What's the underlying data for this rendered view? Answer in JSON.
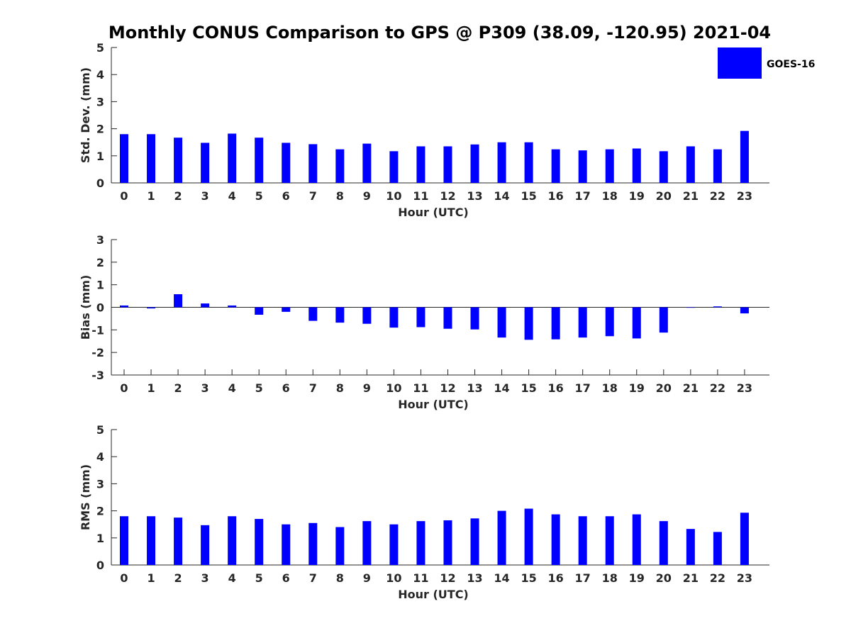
{
  "chart_data": {
    "title": "Monthly CONUS Comparison to GPS @ P309 (38.09, -120.95) 2021-04",
    "type": "bar",
    "color": "#0000ff",
    "legend": {
      "label": "GOES-16",
      "placement": "top-right"
    },
    "panels": [
      {
        "name": "std-dev",
        "type": "bar",
        "xlabel": "Hour (UTC)",
        "ylabel": "Std. Dev. (mm)",
        "ylim": [
          0,
          5
        ],
        "yticks": [
          0,
          1,
          2,
          3,
          4,
          5
        ],
        "categories": [
          "0",
          "1",
          "2",
          "3",
          "4",
          "5",
          "6",
          "7",
          "8",
          "9",
          "10",
          "11",
          "12",
          "13",
          "14",
          "15",
          "16",
          "17",
          "18",
          "19",
          "20",
          "21",
          "22",
          "23"
        ],
        "series": [
          {
            "name": "GOES-16",
            "values": [
              1.8,
              1.8,
              1.67,
              1.48,
              1.82,
              1.67,
              1.48,
              1.43,
              1.24,
              1.45,
              1.17,
              1.35,
              1.35,
              1.42,
              1.5,
              1.5,
              1.24,
              1.2,
              1.24,
              1.27,
              1.17,
              1.35,
              1.24,
              1.92
            ]
          }
        ]
      },
      {
        "name": "bias",
        "type": "bar",
        "xlabel": "Hour (UTC)",
        "ylabel": "Bias (mm)",
        "ylim": [
          -3,
          3
        ],
        "yticks": [
          -3,
          -2,
          -1,
          0,
          1,
          2,
          3
        ],
        "categories": [
          "0",
          "1",
          "2",
          "3",
          "4",
          "5",
          "6",
          "7",
          "8",
          "9",
          "10",
          "11",
          "12",
          "13",
          "14",
          "15",
          "16",
          "17",
          "18",
          "19",
          "20",
          "21",
          "22",
          "23"
        ],
        "series": [
          {
            "name": "GOES-16",
            "values": [
              0.08,
              -0.05,
              0.58,
              0.17,
              0.08,
              -0.33,
              -0.2,
              -0.6,
              -0.68,
              -0.73,
              -0.9,
              -0.88,
              -0.95,
              -0.98,
              -1.34,
              -1.44,
              -1.42,
              -1.34,
              -1.28,
              -1.38,
              -1.12,
              -0.02,
              0.04,
              -0.27
            ]
          }
        ]
      },
      {
        "name": "rms",
        "type": "bar",
        "xlabel": "Hour (UTC)",
        "ylabel": "RMS (mm)",
        "ylim": [
          0,
          5
        ],
        "yticks": [
          0,
          1,
          2,
          3,
          4,
          5
        ],
        "categories": [
          "0",
          "1",
          "2",
          "3",
          "4",
          "5",
          "6",
          "7",
          "8",
          "9",
          "10",
          "11",
          "12",
          "13",
          "14",
          "15",
          "16",
          "17",
          "18",
          "19",
          "20",
          "21",
          "22",
          "23"
        ],
        "series": [
          {
            "name": "GOES-16",
            "values": [
              1.8,
              1.8,
              1.75,
              1.47,
              1.8,
              1.7,
              1.5,
              1.55,
              1.4,
              1.62,
              1.5,
              1.62,
              1.65,
              1.72,
              2.0,
              2.08,
              1.87,
              1.8,
              1.8,
              1.87,
              1.62,
              1.33,
              1.22,
              1.93
            ]
          }
        ]
      }
    ]
  }
}
